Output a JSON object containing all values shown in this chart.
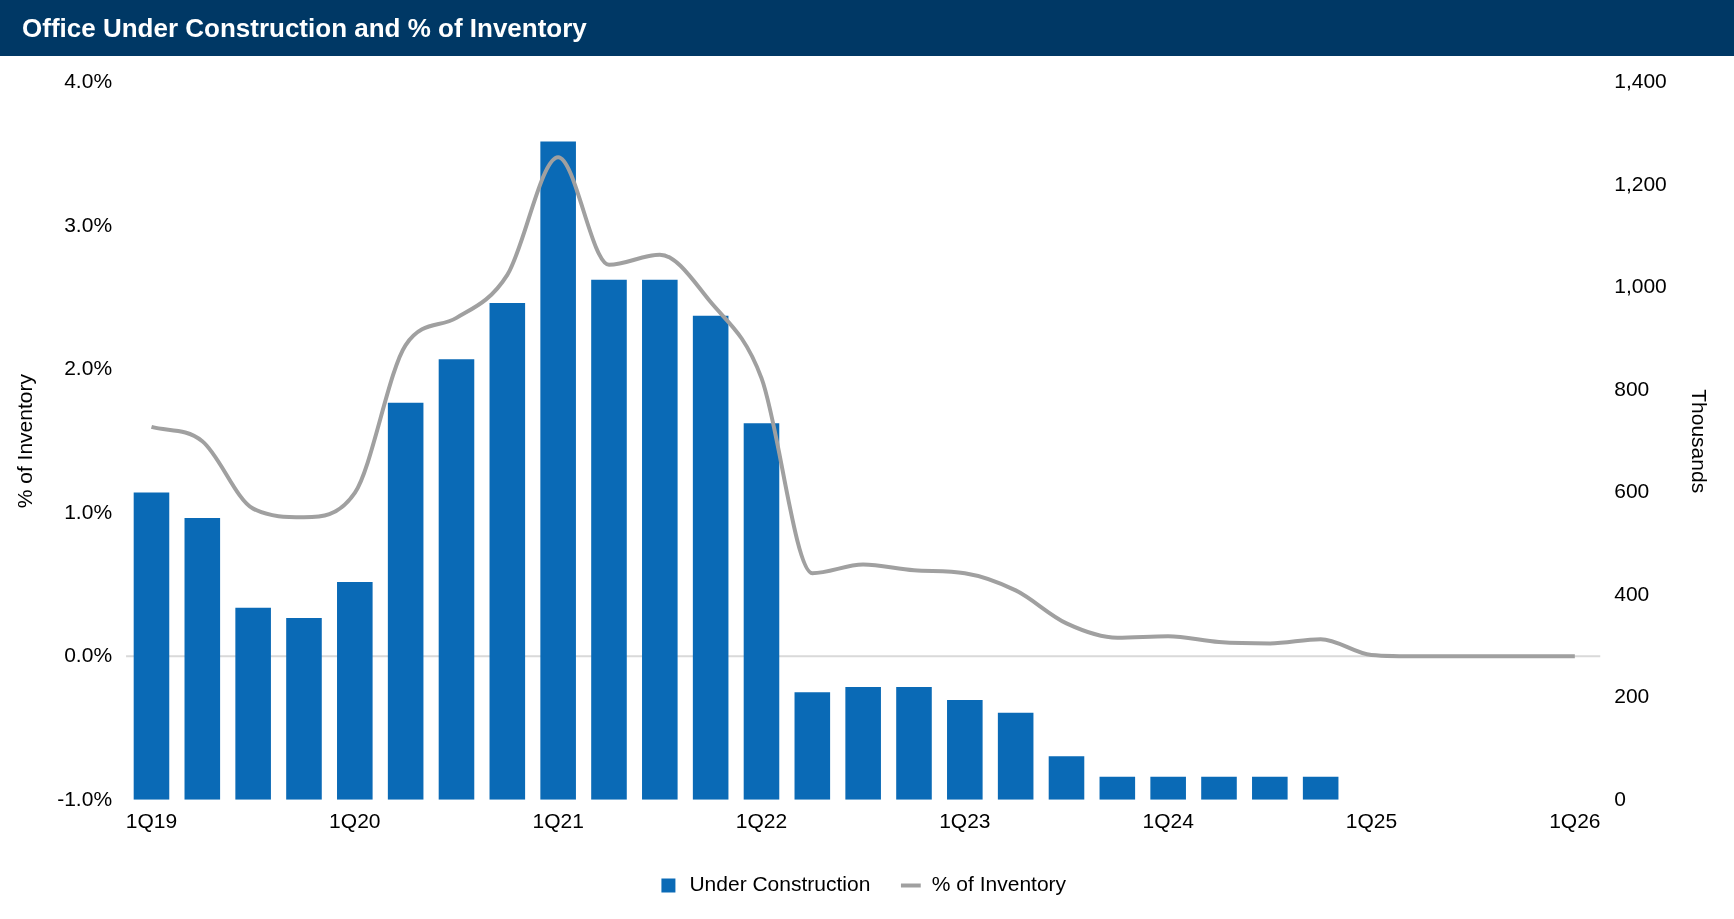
{
  "chart_data": {
    "type": "bar",
    "title": "Office Under Construction and % of Inventory",
    "categories": [
      "1Q19",
      null,
      null,
      null,
      "1Q20",
      null,
      null,
      null,
      "1Q21",
      null,
      null,
      null,
      "1Q22",
      null,
      null,
      null,
      "1Q23",
      null,
      null,
      null,
      "1Q24",
      null,
      null,
      null,
      "1Q25",
      null,
      null,
      null,
      "1Q26"
    ],
    "series": [
      {
        "name": "Under Construction",
        "axis": "y2",
        "color": "#0a6ab6",
        "values": [
          600,
          550,
          375,
          355,
          425,
          775,
          860,
          970,
          1285,
          1015,
          1015,
          945,
          735,
          210,
          220,
          220,
          195,
          170,
          85,
          45,
          45,
          45,
          45,
          45,
          null,
          null,
          null,
          null,
          null
        ]
      },
      {
        "name": "% of Inventory",
        "type": "line",
        "axis": "y",
        "color": "#a0a0a0",
        "values": [
          1.6,
          1.5,
          1.03,
          0.97,
          1.14,
          2.17,
          2.36,
          2.66,
          3.48,
          2.73,
          2.8,
          2.47,
          1.94,
          0.58,
          0.64,
          0.6,
          0.58,
          0.46,
          0.23,
          0.13,
          0.14,
          0.1,
          0.09,
          0.12,
          0.01,
          0.0,
          0.0,
          0.0,
          0.0
        ]
      }
    ],
    "ylabel": "% of Inventory",
    "y2label": "Thousands",
    "ylim": [
      -1,
      4
    ],
    "yticks": [
      {
        "value": -1,
        "label": "-1.0%"
      },
      {
        "value": 0,
        "label": "0.0%"
      },
      {
        "value": 1,
        "label": "1.0%"
      },
      {
        "value": 2,
        "label": "2.0%"
      },
      {
        "value": 3,
        "label": "3.0%"
      },
      {
        "value": 4,
        "label": "4.0%"
      }
    ],
    "y2lim": [
      0,
      1400
    ],
    "y2ticks": [
      0,
      200,
      400,
      600,
      800,
      {
        "value": 1000,
        "label": "1,000"
      },
      {
        "value": 1200,
        "label": "1,200"
      },
      {
        "value": 1400,
        "label": "1,400"
      }
    ],
    "ref_lines": [
      {
        "axis": "y",
        "value": 0,
        "color": "#d9d9d9"
      }
    ],
    "grid": false,
    "legend": "bottom",
    "marker": "none"
  }
}
